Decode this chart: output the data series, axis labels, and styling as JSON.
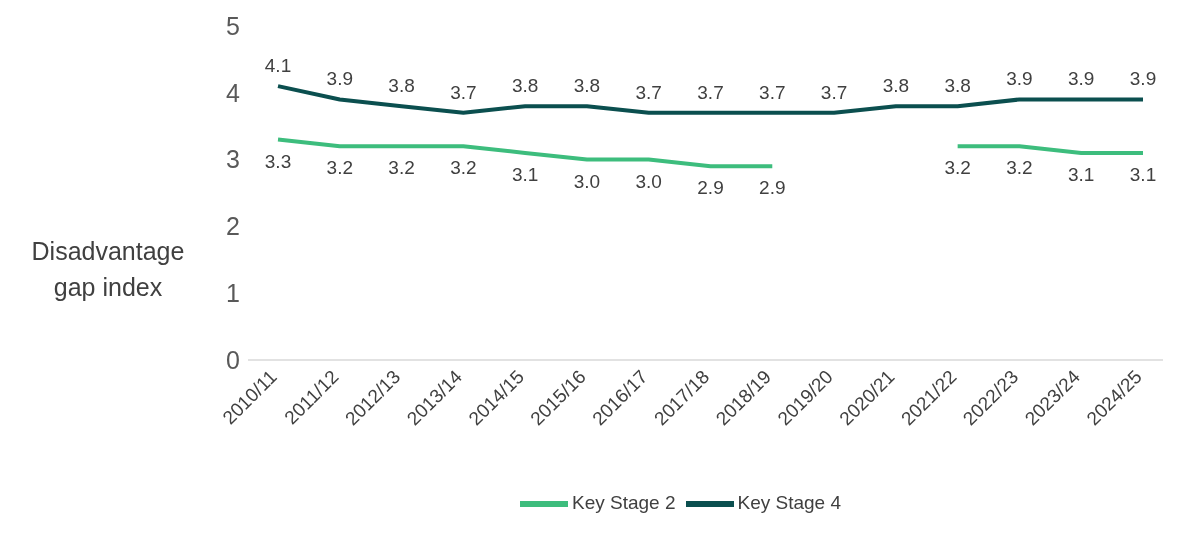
{
  "chart_data": {
    "type": "line",
    "ylabel": "Disadvantage gap index",
    "categories": [
      "2010/11",
      "2011/12",
      "2012/13",
      "2013/14",
      "2014/15",
      "2015/16",
      "2016/17",
      "2017/18",
      "2018/19",
      "2019/20",
      "2020/21",
      "2021/22",
      "2022/23",
      "2023/24",
      "2024/25"
    ],
    "series": [
      {
        "name": "Key Stage 2",
        "color": "#3dbd7d",
        "values": [
          3.3,
          3.2,
          3.2,
          3.2,
          3.1,
          3.0,
          3.0,
          2.9,
          2.9,
          null,
          null,
          3.2,
          3.2,
          3.1,
          3.1
        ],
        "value_labels": [
          "3.3",
          "3.2",
          "3.2",
          "3.2",
          "3.1",
          "3.0",
          "3.0",
          "2.9",
          "2.9",
          null,
          null,
          "3.2",
          "3.2",
          "3.1",
          "3.1"
        ]
      },
      {
        "name": "Key Stage 4",
        "color": "#0b4f4f",
        "values": [
          4.1,
          3.9,
          3.8,
          3.7,
          3.8,
          3.8,
          3.7,
          3.7,
          3.7,
          3.7,
          3.8,
          3.8,
          3.9,
          3.9,
          3.9
        ],
        "value_labels": [
          "4.1",
          "3.9",
          "3.8",
          "3.7",
          "3.8",
          "3.8",
          "3.7",
          "3.7",
          "3.7",
          "3.7",
          "3.8",
          "3.8",
          "3.9",
          "3.9",
          "3.9"
        ]
      }
    ],
    "ylim": [
      0,
      5
    ],
    "yticks": [
      0,
      1,
      2,
      3,
      4,
      5
    ],
    "grid": false,
    "legend": "bottom",
    "marker": "none",
    "line_style": "solid"
  }
}
